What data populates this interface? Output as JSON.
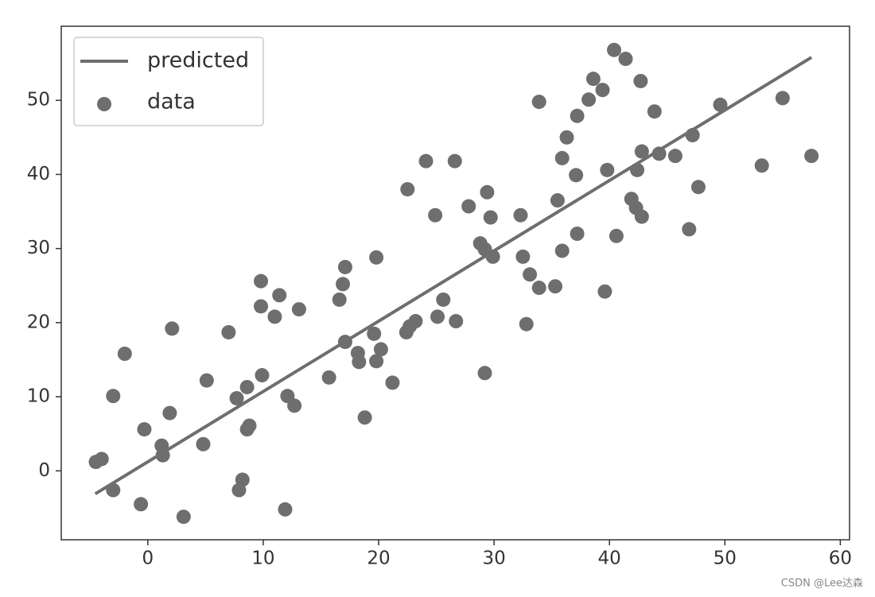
{
  "chart_data": {
    "type": "scatter",
    "xlim": [
      -7.5,
      60.8
    ],
    "ylim": [
      -9.3,
      60
    ],
    "xticks": [
      0,
      10,
      20,
      30,
      40,
      50,
      60
    ],
    "yticks": [
      0,
      10,
      20,
      30,
      40,
      50
    ],
    "legend": "upper left",
    "series": [
      {
        "name": "predicted",
        "type": "line",
        "color": "#6e6e6e",
        "x": [
          -4.55,
          57.5
        ],
        "values": [
          -3.1,
          55.8
        ]
      },
      {
        "name": "data",
        "type": "scatter",
        "color": "#6e6e6e",
        "x": [
          -4.5,
          -4.0,
          -3.0,
          -3.0,
          -2.0,
          -0.6,
          -0.3,
          1.2,
          1.3,
          1.9,
          2.1,
          3.1,
          4.8,
          5.1,
          7.0,
          7.7,
          7.9,
          8.2,
          8.6,
          8.6,
          8.8,
          9.8,
          9.8,
          9.9,
          11.0,
          11.4,
          11.9,
          12.1,
          12.7,
          13.1,
          15.7,
          16.6,
          16.9,
          17.1,
          17.1,
          18.2,
          18.3,
          18.8,
          19.6,
          19.8,
          19.8,
          20.2,
          21.2,
          22.4,
          22.5,
          22.7,
          23.2,
          24.1,
          24.9,
          25.1,
          25.6,
          26.7,
          26.6,
          27.8,
          28.8,
          29.2,
          29.2,
          29.4,
          29.7,
          29.9,
          32.3,
          32.5,
          32.8,
          33.1,
          33.9,
          33.9,
          35.3,
          35.5,
          35.9,
          35.9,
          36.3,
          37.1,
          37.2,
          37.2,
          38.2,
          38.6,
          39.4,
          39.6,
          39.8,
          40.4,
          40.6,
          41.4,
          41.9,
          42.3,
          42.4,
          42.7,
          42.8,
          42.8,
          43.9,
          44.3,
          45.7,
          46.9,
          47.2,
          47.7,
          49.6,
          53.2,
          55.0,
          57.5
        ],
        "values": [
          1.2,
          1.6,
          -2.6,
          10.1,
          15.8,
          -4.5,
          5.6,
          3.4,
          2.1,
          7.8,
          19.2,
          -6.2,
          3.6,
          12.2,
          18.7,
          9.8,
          -2.6,
          -1.2,
          11.3,
          5.6,
          6.1,
          25.6,
          22.2,
          12.9,
          20.8,
          23.7,
          -5.2,
          10.1,
          8.8,
          21.8,
          12.6,
          23.1,
          25.2,
          27.5,
          17.4,
          15.9,
          14.7,
          7.2,
          18.5,
          14.8,
          28.8,
          16.4,
          11.9,
          18.7,
          38.0,
          19.5,
          20.2,
          41.8,
          34.5,
          20.8,
          23.1,
          20.2,
          41.8,
          35.7,
          30.7,
          13.2,
          29.9,
          37.6,
          34.2,
          28.9,
          34.5,
          28.9,
          19.8,
          26.5,
          24.7,
          49.8,
          24.9,
          36.5,
          42.2,
          29.7,
          45.0,
          39.9,
          47.9,
          32.0,
          50.1,
          52.9,
          51.4,
          24.2,
          40.6,
          56.8,
          31.7,
          55.6,
          36.7,
          35.5,
          40.6,
          52.6,
          34.3,
          43.1,
          48.5,
          42.8,
          42.5,
          32.6,
          45.3,
          38.3,
          49.4,
          41.2,
          50.3,
          42.5
        ]
      }
    ],
    "watermark": "CSDN @Lee达森"
  }
}
